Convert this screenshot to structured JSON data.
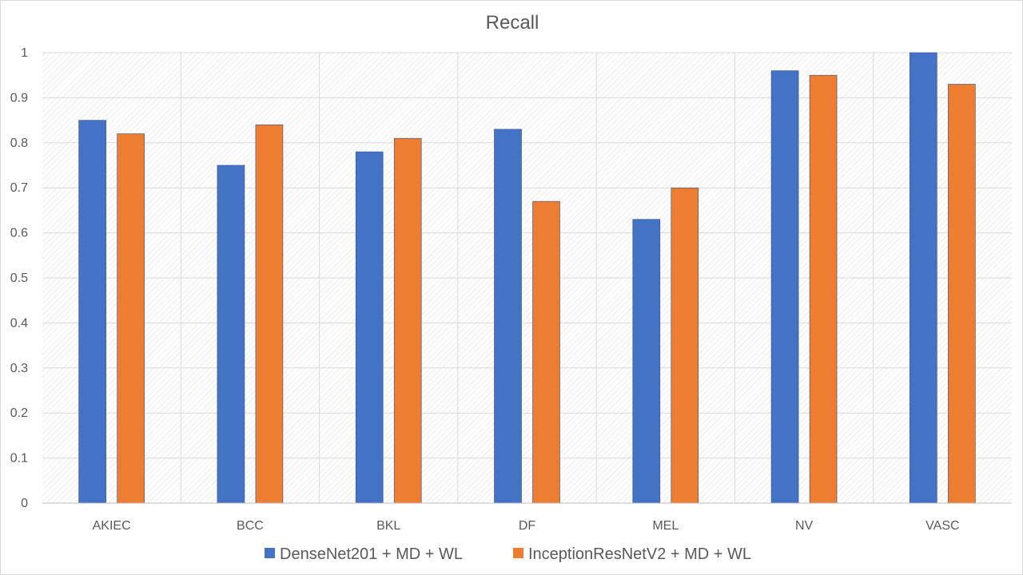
{
  "chart_data": {
    "type": "bar",
    "title": "Recall",
    "xlabel": "",
    "ylabel": "",
    "ylim": [
      0,
      1
    ],
    "yticks": [
      "0",
      "0.1",
      "0.2",
      "0.3",
      "0.4",
      "0.5",
      "0.6",
      "0.7",
      "0.8",
      "0.9",
      "1"
    ],
    "categories": [
      "AKIEC",
      "BCC",
      "BKL",
      "DF",
      "MEL",
      "NV",
      "VASC"
    ],
    "series": [
      {
        "name": "DenseNet201 + MD + WL",
        "color": "#4472C4",
        "values": [
          0.85,
          0.75,
          0.78,
          0.83,
          0.63,
          0.96,
          1.0
        ]
      },
      {
        "name": "InceptionResNetV2 + MD + WL",
        "color": "#ED7D31",
        "values": [
          0.82,
          0.84,
          0.81,
          0.67,
          0.7,
          0.95,
          0.93
        ]
      }
    ],
    "grid": true,
    "legend": "bottom"
  }
}
